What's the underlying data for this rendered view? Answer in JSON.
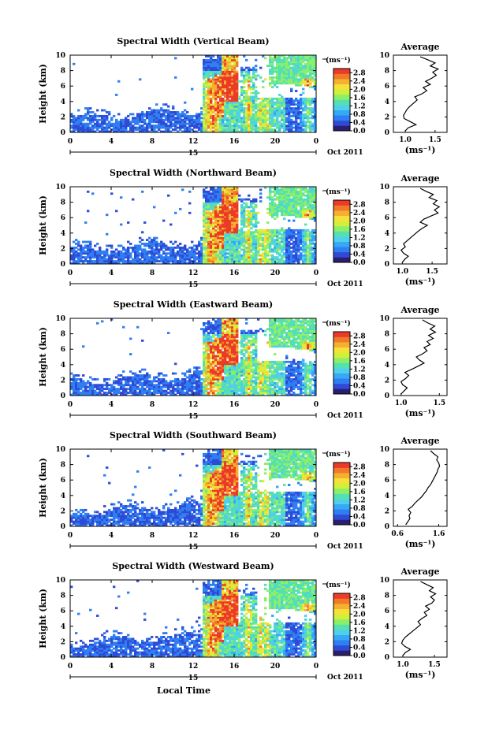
{
  "figure": {
    "xlabel": "Local Time",
    "ylabel": "Height (km)",
    "date_label": "Oct 2011",
    "day_marker": "15",
    "colorbar_unit": "(ms⁻¹)",
    "avg_title": "Average",
    "avg_xlabel": "(ms⁻¹)"
  },
  "colormap": [
    "#2a1e6e",
    "#2f4bd6",
    "#2f7ff2",
    "#36a8f5",
    "#4fd0e8",
    "#55e0b0",
    "#8bef6a",
    "#d2ef3a",
    "#f5e13a",
    "#f5b030",
    "#f07a28",
    "#eb3a28"
  ],
  "chart_data": [
    {
      "type": "heatmap",
      "title": "Spectral Width (Vertical Beam)",
      "xlabel": "",
      "ylabel": "Height (km)",
      "x_ticks": [
        "0",
        "4",
        "8",
        "12",
        "16",
        "20",
        "0"
      ],
      "y_ticks": [
        "0",
        "2",
        "4",
        "6",
        "8",
        "10"
      ],
      "xlim": [
        0,
        24
      ],
      "ylim": [
        0,
        10
      ],
      "colorbar_ticks": [
        "0.0",
        "0.4",
        "0.8",
        "1.2",
        "1.6",
        "2.0",
        "2.4",
        "2.8"
      ],
      "colorbar_range": [
        0.0,
        3.0
      ],
      "average_profile": {
        "x_ticks": [
          "1.0",
          "1.5"
        ],
        "xlim": [
          0.8,
          1.7
        ],
        "ylim": [
          0,
          10
        ],
        "height_km": [
          0.2,
          0.6,
          1.0,
          1.4,
          1.8,
          2.2,
          2.6,
          3.0,
          3.4,
          3.8,
          4.2,
          4.6,
          5.0,
          5.4,
          5.8,
          6.2,
          6.6,
          7.0,
          7.4,
          7.8,
          8.2,
          8.6,
          9.0,
          9.4,
          9.8
        ],
        "value": [
          1.0,
          1.05,
          1.18,
          1.08,
          0.98,
          0.97,
          1.0,
          1.03,
          1.08,
          1.14,
          1.2,
          1.16,
          1.28,
          1.36,
          1.3,
          1.42,
          1.34,
          1.44,
          1.52,
          1.46,
          1.55,
          1.42,
          1.5,
          1.38,
          1.25
        ]
      }
    },
    {
      "type": "heatmap",
      "title": "Spectral Width (Northward Beam)",
      "xlabel": "",
      "ylabel": "Height (km)",
      "x_ticks": [
        "0",
        "4",
        "8",
        "12",
        "16",
        "20",
        "0"
      ],
      "y_ticks": [
        "0",
        "2",
        "4",
        "6",
        "8",
        "10"
      ],
      "xlim": [
        0,
        24
      ],
      "ylim": [
        0,
        10
      ],
      "colorbar_ticks": [
        "0.0",
        "0.4",
        "0.8",
        "1.2",
        "1.6",
        "2.0",
        "2.4",
        "2.8"
      ],
      "colorbar_range": [
        0.0,
        3.0
      ],
      "average_profile": {
        "x_ticks": [
          "1.0",
          "1.5"
        ],
        "xlim": [
          0.85,
          1.75
        ],
        "ylim": [
          0,
          10
        ],
        "height_km": [
          0.2,
          0.6,
          1.0,
          1.4,
          1.8,
          2.2,
          2.6,
          3.0,
          3.4,
          3.8,
          4.2,
          4.6,
          5.0,
          5.4,
          5.8,
          6.2,
          6.6,
          7.0,
          7.4,
          7.8,
          8.2,
          8.6,
          9.0,
          9.4,
          9.8
        ],
        "value": [
          1.0,
          1.04,
          1.1,
          1.02,
          0.98,
          1.05,
          1.02,
          1.08,
          1.14,
          1.2,
          1.26,
          1.33,
          1.42,
          1.3,
          1.36,
          1.48,
          1.6,
          1.54,
          1.62,
          1.52,
          1.58,
          1.45,
          1.52,
          1.4,
          1.3
        ]
      }
    },
    {
      "type": "heatmap",
      "title": "Spectral Width (Eastward Beam)",
      "xlabel": "",
      "ylabel": "Height (km)",
      "x_ticks": [
        "0",
        "4",
        "8",
        "12",
        "16",
        "20",
        "0"
      ],
      "y_ticks": [
        "0",
        "2",
        "4",
        "6",
        "8",
        "10"
      ],
      "xlim": [
        0,
        24
      ],
      "ylim": [
        0,
        10
      ],
      "colorbar_ticks": [
        "0.0",
        "0.4",
        "0.8",
        "1.2",
        "1.6",
        "2.0",
        "2.4",
        "2.8"
      ],
      "colorbar_range": [
        0.0,
        3.0
      ],
      "average_profile": {
        "x_ticks": [
          "1.0",
          "1.5"
        ],
        "xlim": [
          0.9,
          1.6
        ],
        "ylim": [
          0,
          10
        ],
        "height_km": [
          0.2,
          0.6,
          1.0,
          1.4,
          1.8,
          2.2,
          2.6,
          3.0,
          3.4,
          3.8,
          4.2,
          4.6,
          5.0,
          5.4,
          5.8,
          6.2,
          6.6,
          7.0,
          7.4,
          7.8,
          8.2,
          8.6,
          9.0,
          9.4,
          9.8
        ],
        "value": [
          1.0,
          1.04,
          1.08,
          1.02,
          1.0,
          1.06,
          1.1,
          1.05,
          1.14,
          1.22,
          1.3,
          1.24,
          1.2,
          1.28,
          1.34,
          1.3,
          1.38,
          1.34,
          1.42,
          1.36,
          1.45,
          1.38,
          1.44,
          1.35,
          1.28
        ]
      }
    },
    {
      "type": "heatmap",
      "title": "Spectral Width (Southward Beam)",
      "xlabel": "",
      "ylabel": "Height (km)",
      "x_ticks": [
        "0",
        "4",
        "8",
        "12",
        "16",
        "20",
        "0"
      ],
      "y_ticks": [
        "0",
        "2",
        "4",
        "6",
        "8",
        "10"
      ],
      "xlim": [
        0,
        24
      ],
      "ylim": [
        0,
        10
      ],
      "colorbar_ticks": [
        "0.0",
        "0.4",
        "0.8",
        "1.2",
        "1.6",
        "2.0",
        "2.4",
        "2.8"
      ],
      "colorbar_range": [
        0.0,
        3.0
      ],
      "average_profile": {
        "x_ticks": [
          "0.6",
          "1.6"
        ],
        "xlim": [
          0.5,
          1.8
        ],
        "ylim": [
          0,
          10
        ],
        "height_km": [
          0.2,
          0.6,
          1.0,
          1.4,
          1.8,
          2.2,
          2.6,
          3.0,
          3.4,
          3.8,
          4.2,
          4.6,
          5.0,
          5.4,
          5.8,
          6.2,
          6.6,
          7.0,
          7.4,
          7.8,
          8.2,
          8.6,
          9.0,
          9.4,
          9.8
        ],
        "value": [
          0.8,
          0.85,
          0.9,
          0.88,
          0.92,
          0.86,
          0.96,
          1.02,
          1.1,
          1.18,
          1.24,
          1.3,
          1.34,
          1.4,
          1.44,
          1.48,
          1.52,
          1.56,
          1.58,
          1.62,
          1.6,
          1.55,
          1.58,
          1.48,
          1.4
        ]
      }
    },
    {
      "type": "heatmap",
      "title": "Spectral Width (Westward Beam)",
      "xlabel": "Local Time",
      "ylabel": "Height (km)",
      "x_ticks": [
        "0",
        "4",
        "8",
        "12",
        "16",
        "20",
        "0"
      ],
      "y_ticks": [
        "0",
        "2",
        "4",
        "6",
        "8",
        "10"
      ],
      "xlim": [
        0,
        24
      ],
      "ylim": [
        0,
        10
      ],
      "colorbar_ticks": [
        "0.0",
        "0.4",
        "0.8",
        "1.2",
        "1.6",
        "2.0",
        "2.4",
        "2.8"
      ],
      "colorbar_range": [
        0.0,
        3.0
      ],
      "average_profile": {
        "x_ticks": [
          "1.0",
          "1.5"
        ],
        "xlim": [
          0.85,
          1.7
        ],
        "ylim": [
          0,
          10
        ],
        "height_km": [
          0.2,
          0.6,
          1.0,
          1.4,
          1.8,
          2.2,
          2.6,
          3.0,
          3.4,
          3.8,
          4.2,
          4.6,
          5.0,
          5.4,
          5.8,
          6.2,
          6.6,
          7.0,
          7.4,
          7.8,
          8.2,
          8.6,
          9.0,
          9.4,
          9.8
        ],
        "value": [
          1.0,
          1.04,
          1.12,
          1.03,
          0.98,
          1.0,
          1.04,
          1.1,
          1.16,
          1.22,
          1.28,
          1.24,
          1.3,
          1.38,
          1.34,
          1.42,
          1.36,
          1.46,
          1.5,
          1.44,
          1.52,
          1.42,
          1.48,
          1.38,
          1.28
        ]
      }
    }
  ]
}
